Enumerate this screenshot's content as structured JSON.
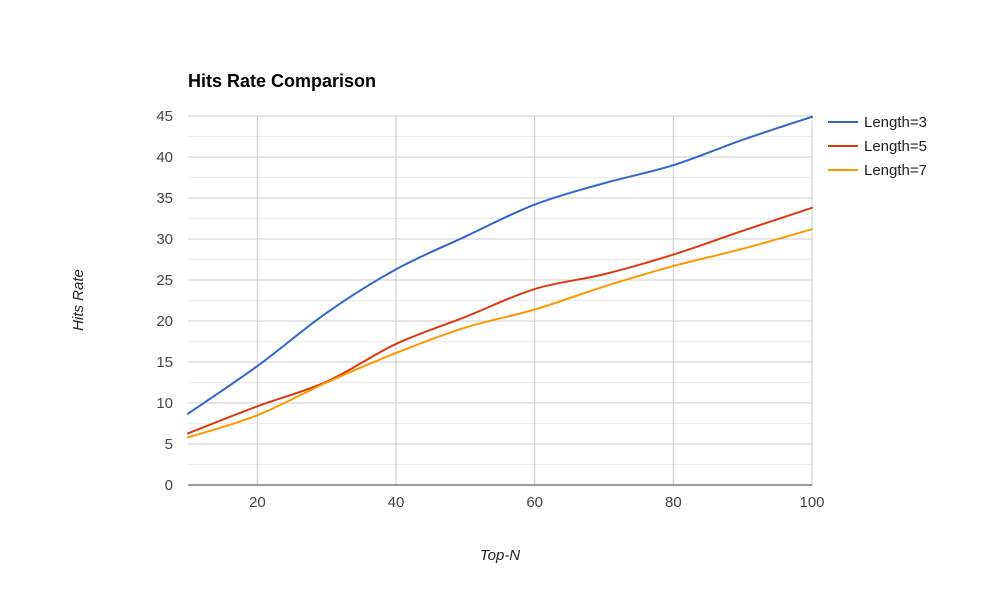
{
  "chart_data": {
    "type": "line",
    "title": "Hits Rate Comparison",
    "xlabel": "Top-N",
    "ylabel": "Hits Rate",
    "xlim": [
      10,
      100
    ],
    "ylim": [
      0,
      45
    ],
    "x_ticks": [
      20,
      40,
      60,
      80,
      100
    ],
    "y_ticks": [
      0,
      5,
      10,
      15,
      20,
      25,
      30,
      35,
      40,
      45
    ],
    "grid": true,
    "legend_position": "right",
    "x": [
      10,
      20,
      30,
      40,
      50,
      60,
      70,
      80,
      90,
      100
    ],
    "series": [
      {
        "name": "Length=3",
        "color": "#3366cc",
        "values": [
          8.7,
          14.5,
          21.0,
          26.3,
          30.3,
          34.2,
          36.8,
          39.0,
          42.1,
          44.9
        ]
      },
      {
        "name": "Length=5",
        "color": "#dc3912",
        "values": [
          6.3,
          9.6,
          12.6,
          17.2,
          20.5,
          23.9,
          25.7,
          28.1,
          31.0,
          33.8
        ]
      },
      {
        "name": "Length=7",
        "color": "#ff9900",
        "values": [
          5.8,
          8.5,
          12.5,
          16.1,
          19.2,
          21.4,
          24.2,
          26.7,
          28.8,
          31.2
        ]
      }
    ]
  }
}
